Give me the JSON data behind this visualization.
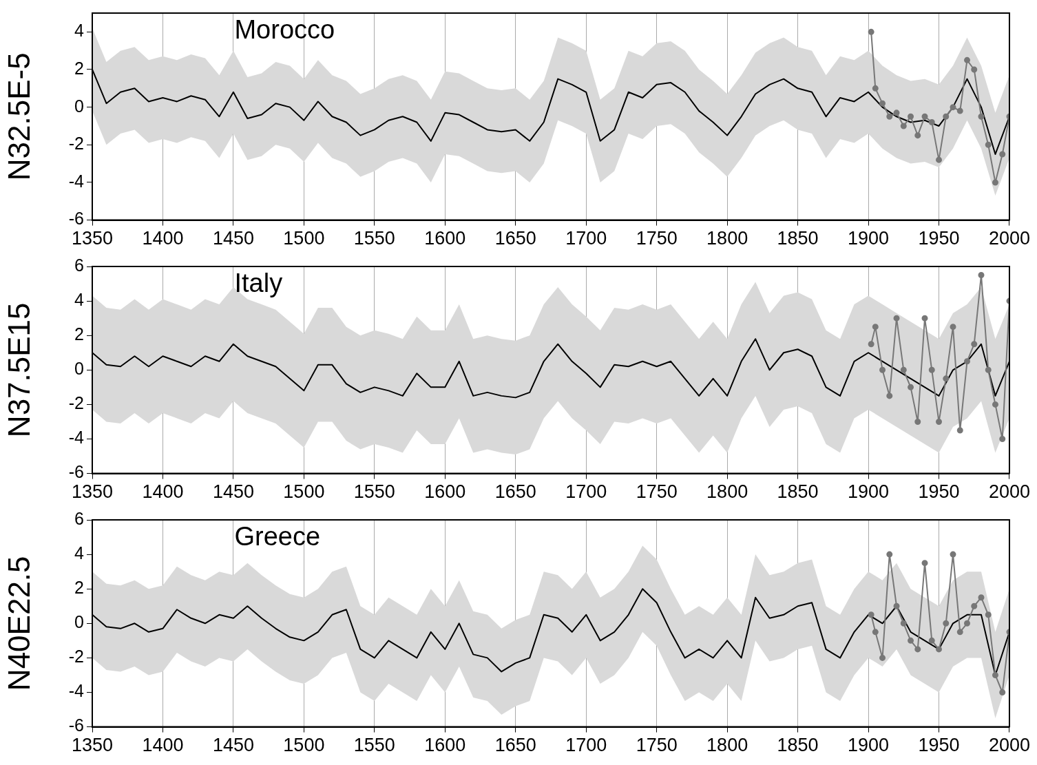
{
  "chart_data": [
    {
      "type": "line",
      "ylabel": "N32.5E-5",
      "annotations": [
        "Morocco"
      ],
      "xlim": [
        1350,
        2000
      ],
      "xticks": [
        1350,
        1400,
        1450,
        1500,
        1550,
        1600,
        1650,
        1700,
        1750,
        1800,
        1850,
        1900,
        1950,
        2000
      ],
      "ylim": [
        -6,
        5
      ],
      "yticks": [
        -6,
        -4,
        -2,
        0,
        2,
        4
      ],
      "grid": "x",
      "x": [
        1350,
        1360,
        1370,
        1380,
        1390,
        1400,
        1410,
        1420,
        1430,
        1440,
        1450,
        1460,
        1470,
        1480,
        1490,
        1500,
        1510,
        1520,
        1530,
        1540,
        1550,
        1560,
        1570,
        1580,
        1590,
        1600,
        1610,
        1620,
        1630,
        1640,
        1650,
        1660,
        1670,
        1680,
        1690,
        1700,
        1710,
        1720,
        1730,
        1740,
        1750,
        1760,
        1770,
        1780,
        1790,
        1800,
        1810,
        1820,
        1830,
        1840,
        1850,
        1860,
        1870,
        1880,
        1890,
        1900,
        1910,
        1920,
        1930,
        1940,
        1950,
        1960,
        1970,
        1980,
        1990,
        2000
      ],
      "series": [
        {
          "color": "#000000",
          "marker": "none",
          "values": [
            2,
            0.2,
            0.8,
            1,
            0.3,
            0.5,
            0.3,
            0.6,
            0.4,
            -0.5,
            0.8,
            -0.6,
            -0.4,
            0.2,
            0,
            -0.7,
            0.3,
            -0.5,
            -0.8,
            -1.5,
            -1.2,
            -0.7,
            -0.5,
            -0.8,
            -1.8,
            -0.3,
            -0.4,
            -0.8,
            -1.2,
            -1.3,
            -1.2,
            -1.8,
            -0.8,
            1.5,
            1.2,
            0.8,
            -1.8,
            -1.2,
            0.8,
            0.5,
            1.2,
            1.3,
            0.8,
            -0.2,
            -0.8,
            -1.5,
            -0.5,
            0.7,
            1.2,
            1.5,
            1,
            0.8,
            -0.5,
            0.5,
            0.3,
            0.8,
            0,
            -0.5,
            -0.8,
            -0.7,
            -1,
            0,
            1.5,
            0,
            -2.5,
            -0.5
          ],
          "upper": [
            4.2,
            2.4,
            3,
            3.2,
            2.5,
            2.7,
            2.5,
            2.8,
            2.6,
            1.7,
            3,
            1.6,
            1.8,
            2.4,
            2.2,
            1.5,
            2.5,
            1.7,
            1.4,
            0.7,
            1,
            1.5,
            1.7,
            1.4,
            0.4,
            1.9,
            1.8,
            1.4,
            1,
            0.9,
            1,
            0.4,
            1.4,
            3.7,
            3.4,
            3,
            0.4,
            1,
            3,
            2.7,
            3.4,
            3.5,
            3,
            2,
            1.4,
            0.7,
            1.7,
            2.9,
            3.4,
            3.7,
            3.2,
            3,
            1.7,
            2.7,
            2.5,
            3,
            2.2,
            1.7,
            1.4,
            1.5,
            1.2,
            2.2,
            3.7,
            2.2,
            -0.3,
            1.7
          ],
          "lower": [
            -0.2,
            -2,
            -1.4,
            -1.2,
            -1.9,
            -1.7,
            -1.9,
            -1.6,
            -1.8,
            -2.7,
            -1.4,
            -2.8,
            -2.6,
            -2,
            -2.2,
            -2.9,
            -1.9,
            -2.7,
            -3,
            -3.7,
            -3.4,
            -2.9,
            -2.7,
            -3,
            -4,
            -2.5,
            -2.6,
            -3,
            -3.4,
            -3.5,
            -3.4,
            -4,
            -3,
            -0.7,
            -1,
            -1.4,
            -4,
            -3.4,
            -1.4,
            -1.7,
            -1,
            -0.9,
            -1.4,
            -2.4,
            -3,
            -3.7,
            -2.7,
            -1.5,
            -1,
            -0.7,
            -1.2,
            -1.4,
            -2.7,
            -1.7,
            -1.9,
            -1.4,
            -2.2,
            -2.7,
            -3,
            -2.9,
            -3.2,
            -2.2,
            -0.7,
            -2.2,
            -4.7,
            -2.7
          ]
        },
        {
          "color": "#777777",
          "marker": "circle",
          "x": [
            1902,
            1905,
            1910,
            1915,
            1920,
            1925,
            1930,
            1935,
            1940,
            1945,
            1950,
            1955,
            1960,
            1965,
            1970,
            1975,
            1980,
            1985,
            1990,
            1995,
            2000
          ],
          "values": [
            4,
            1,
            0.2,
            -0.5,
            -0.3,
            -1,
            -0.5,
            -1.5,
            -0.5,
            -0.8,
            -2.8,
            -0.5,
            0,
            -0.2,
            2.5,
            2,
            -0.5,
            -2,
            -4,
            -2.5,
            -0.5
          ]
        }
      ]
    },
    {
      "type": "line",
      "ylabel": "N37.5E15",
      "annotations": [
        "Italy"
      ],
      "xlim": [
        1350,
        2000
      ],
      "xticks": [
        1350,
        1400,
        1450,
        1500,
        1550,
        1600,
        1650,
        1700,
        1750,
        1800,
        1850,
        1900,
        1950,
        2000
      ],
      "ylim": [
        -6,
        6
      ],
      "yticks": [
        -6,
        -4,
        -2,
        0,
        2,
        4,
        6
      ],
      "grid": "x",
      "x": [
        1350,
        1360,
        1370,
        1380,
        1390,
        1400,
        1410,
        1420,
        1430,
        1440,
        1450,
        1460,
        1470,
        1480,
        1490,
        1500,
        1510,
        1520,
        1530,
        1540,
        1550,
        1560,
        1570,
        1580,
        1590,
        1600,
        1610,
        1620,
        1630,
        1640,
        1650,
        1660,
        1670,
        1680,
        1690,
        1700,
        1710,
        1720,
        1730,
        1740,
        1750,
        1760,
        1770,
        1780,
        1790,
        1800,
        1810,
        1820,
        1830,
        1840,
        1850,
        1860,
        1870,
        1880,
        1890,
        1900,
        1910,
        1920,
        1930,
        1940,
        1950,
        1960,
        1970,
        1980,
        1990,
        2000
      ],
      "series": [
        {
          "color": "#000000",
          "marker": "none",
          "values": [
            1,
            0.3,
            0.2,
            0.8,
            0.2,
            0.8,
            0.5,
            0.2,
            0.8,
            0.5,
            1.5,
            0.8,
            0.5,
            0.2,
            -0.5,
            -1.2,
            0.3,
            0.3,
            -0.8,
            -1.3,
            -1,
            -1.2,
            -1.5,
            -0.2,
            -1,
            -1,
            0.5,
            -1.5,
            -1.3,
            -1.5,
            -1.6,
            -1.3,
            0.5,
            1.5,
            0.5,
            -0.2,
            -1,
            0.3,
            0.2,
            0.5,
            0.2,
            0.5,
            -0.5,
            -1.5,
            -0.5,
            -1.5,
            0.5,
            1.8,
            0,
            1,
            1.2,
            0.8,
            -1,
            -1.5,
            0.5,
            1,
            0.5,
            0,
            -0.5,
            -1,
            -1.5,
            0,
            0.5,
            1.5,
            -1.5,
            0.5
          ],
          "upper": [
            4.3,
            3.6,
            3.5,
            4.1,
            3.5,
            4.1,
            3.8,
            3.5,
            4.1,
            3.8,
            4.8,
            4.1,
            3.8,
            3.5,
            2.8,
            2.1,
            3.6,
            3.6,
            2.5,
            2,
            2.3,
            2.1,
            1.8,
            3.1,
            2.3,
            2.3,
            3.8,
            1.8,
            2,
            1.8,
            1.7,
            2,
            3.8,
            4.8,
            3.8,
            3.1,
            2.3,
            3.6,
            3.5,
            3.8,
            3.5,
            3.8,
            2.8,
            1.8,
            2.8,
            1.8,
            3.8,
            5.1,
            3.3,
            4.3,
            4.5,
            4.1,
            2.3,
            1.8,
            3.8,
            4.3,
            3.8,
            3.3,
            2.8,
            2.3,
            1.8,
            3.3,
            3.8,
            4.8,
            1.8,
            3.8
          ],
          "lower": [
            -2.3,
            -3,
            -3.1,
            -2.5,
            -3.1,
            -2.5,
            -2.8,
            -3.1,
            -2.5,
            -2.8,
            -1.8,
            -2.5,
            -2.8,
            -3.1,
            -3.8,
            -4.5,
            -3,
            -3,
            -4.1,
            -4.6,
            -4.3,
            -4.5,
            -4.8,
            -3.5,
            -4.3,
            -4.3,
            -2.8,
            -4.8,
            -4.6,
            -4.8,
            -4.9,
            -4.6,
            -2.8,
            -1.8,
            -2.8,
            -3.5,
            -4.3,
            -3,
            -3.1,
            -2.8,
            -3.1,
            -2.8,
            -3.8,
            -4.8,
            -3.8,
            -4.8,
            -2.8,
            -1.5,
            -3.3,
            -2.3,
            -2.1,
            -2.5,
            -4.3,
            -4.8,
            -2.8,
            -2.3,
            -2.8,
            -3.3,
            -3.8,
            -4.3,
            -4.8,
            -3.3,
            -2.8,
            -1.8,
            -4.8,
            -2.8
          ]
        },
        {
          "color": "#777777",
          "marker": "circle",
          "x": [
            1902,
            1905,
            1910,
            1915,
            1920,
            1925,
            1930,
            1935,
            1940,
            1945,
            1950,
            1955,
            1960,
            1965,
            1970,
            1975,
            1980,
            1985,
            1990,
            1995,
            2000
          ],
          "values": [
            1.5,
            2.5,
            0,
            -1.5,
            3,
            0,
            -1,
            -3,
            3,
            0,
            -3,
            -0.5,
            2.5,
            -3.5,
            0.5,
            1.5,
            5.5,
            0,
            -2,
            -4,
            4
          ]
        }
      ]
    },
    {
      "type": "line",
      "ylabel": "N40E22.5",
      "annotations": [
        "Greece"
      ],
      "xlim": [
        1350,
        2000
      ],
      "xticks": [
        1350,
        1400,
        1450,
        1500,
        1550,
        1600,
        1650,
        1700,
        1750,
        1800,
        1850,
        1900,
        1950,
        2000
      ],
      "ylim": [
        -6,
        6
      ],
      "yticks": [
        -6,
        -4,
        -2,
        0,
        2,
        4,
        6
      ],
      "grid": "x",
      "x": [
        1350,
        1360,
        1370,
        1380,
        1390,
        1400,
        1410,
        1420,
        1430,
        1440,
        1450,
        1460,
        1470,
        1480,
        1490,
        1500,
        1510,
        1520,
        1530,
        1540,
        1550,
        1560,
        1570,
        1580,
        1590,
        1600,
        1610,
        1620,
        1630,
        1640,
        1650,
        1660,
        1670,
        1680,
        1690,
        1700,
        1710,
        1720,
        1730,
        1740,
        1750,
        1760,
        1770,
        1780,
        1790,
        1800,
        1810,
        1820,
        1830,
        1840,
        1850,
        1860,
        1870,
        1880,
        1890,
        1900,
        1910,
        1920,
        1930,
        1940,
        1950,
        1960,
        1970,
        1980,
        1990,
        2000
      ],
      "series": [
        {
          "color": "#000000",
          "marker": "none",
          "values": [
            0.5,
            -0.2,
            -0.3,
            0,
            -0.5,
            -0.3,
            0.8,
            0.3,
            0,
            0.5,
            0.3,
            1,
            0.3,
            -0.3,
            -0.8,
            -1,
            -0.5,
            0.5,
            0.8,
            -1.5,
            -2,
            -1,
            -1.5,
            -2,
            -0.5,
            -1.5,
            0,
            -1.8,
            -2,
            -2.8,
            -2.3,
            -2,
            0.5,
            0.3,
            -0.5,
            0.5,
            -1,
            -0.5,
            0.5,
            2,
            1.2,
            -0.5,
            -2,
            -1.5,
            -2,
            -1,
            -2,
            1.5,
            0.3,
            0.5,
            1,
            1.2,
            -1.5,
            -2,
            -0.5,
            0.5,
            0,
            1,
            -0.5,
            -1,
            -1.5,
            0,
            0.5,
            0.5,
            -3,
            -0.5
          ],
          "upper": [
            3,
            2.3,
            2.2,
            2.5,
            2,
            2.2,
            3.3,
            2.8,
            2.5,
            3,
            2.8,
            3.5,
            2.8,
            2.2,
            1.7,
            1.5,
            2,
            3,
            3.3,
            1,
            0.5,
            1.5,
            1,
            0.5,
            2,
            1,
            2.5,
            0.7,
            0.5,
            -0.3,
            0.2,
            0.5,
            3,
            2.8,
            2,
            3,
            1.5,
            2,
            3,
            4.5,
            3.7,
            2,
            0.5,
            1,
            0.5,
            1.5,
            0.5,
            4,
            2.8,
            3,
            3.5,
            3.7,
            1,
            0.5,
            2,
            3,
            2.5,
            3.5,
            2,
            1.5,
            1,
            2.5,
            3,
            3,
            -0.5,
            2
          ],
          "lower": [
            -2,
            -2.7,
            -2.8,
            -2.5,
            -3,
            -2.8,
            -1.7,
            -2.2,
            -2.5,
            -2,
            -2.2,
            -1.5,
            -2.2,
            -2.8,
            -3.3,
            -3.5,
            -3,
            -2,
            -1.7,
            -4,
            -4.5,
            -3.5,
            -4,
            -4.5,
            -3,
            -4,
            -2.5,
            -4.3,
            -4.5,
            -5.3,
            -4.8,
            -4.5,
            -2,
            -2.2,
            -3,
            -2,
            -3.5,
            -3,
            -2,
            -0.5,
            -1.3,
            -3,
            -4.5,
            -4,
            -4.5,
            -3.5,
            -4.5,
            -1,
            -2.2,
            -2,
            -1.5,
            -1.3,
            -4,
            -4.5,
            -3,
            -2,
            -2.5,
            -1.5,
            -3,
            -3.5,
            -4,
            -2.5,
            -2,
            -2,
            -5.5,
            -3
          ]
        },
        {
          "color": "#777777",
          "marker": "circle",
          "x": [
            1902,
            1905,
            1910,
            1915,
            1920,
            1925,
            1930,
            1935,
            1940,
            1945,
            1950,
            1955,
            1960,
            1965,
            1970,
            1975,
            1980,
            1985,
            1990,
            1995,
            2000
          ],
          "values": [
            0.5,
            -0.5,
            -2,
            4,
            1,
            0,
            -1,
            -1.5,
            3.5,
            -1,
            -1.5,
            0,
            4,
            -0.5,
            0,
            1,
            1.5,
            0.5,
            -3,
            -4,
            -0.5
          ]
        }
      ]
    }
  ]
}
